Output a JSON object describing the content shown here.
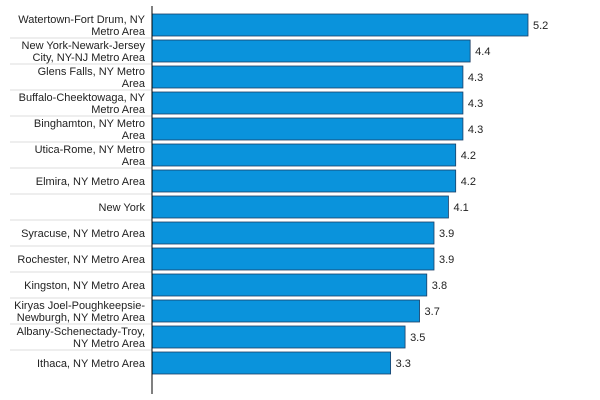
{
  "chart_data": {
    "type": "bar",
    "orientation": "horizontal",
    "title": "",
    "xlabel": "",
    "ylabel": "",
    "xlim": [
      0,
      5.2
    ],
    "grid": false,
    "legend": "none",
    "bar_color": "#0a93dc",
    "bar_border_color": "#1b3f66",
    "categories": [
      [
        "Watertown-Fort Drum, NY",
        "Metro Area"
      ],
      [
        "New York-Newark-Jersey",
        "City, NY-NJ Metro Area"
      ],
      [
        "Glens Falls, NY Metro",
        "Area"
      ],
      [
        "Buffalo-Cheektowaga, NY",
        "Metro Area"
      ],
      [
        "Binghamton, NY Metro",
        "Area"
      ],
      [
        "Utica-Rome, NY Metro",
        "Area"
      ],
      [
        "Elmira, NY Metro Area"
      ],
      [
        "New York"
      ],
      [
        "Syracuse, NY Metro Area"
      ],
      [
        "Rochester, NY Metro Area"
      ],
      [
        "Kingston, NY Metro Area"
      ],
      [
        "Kiryas Joel-Poughkeepsie-",
        "Newburgh, NY Metro Area"
      ],
      [
        "Albany-Schenectady-Troy,",
        "NY Metro Area"
      ],
      [
        "Ithaca, NY Metro Area"
      ]
    ],
    "values": [
      5.2,
      4.4,
      4.3,
      4.3,
      4.3,
      4.2,
      4.2,
      4.1,
      3.9,
      3.9,
      3.8,
      3.7,
      3.5,
      3.3
    ]
  }
}
